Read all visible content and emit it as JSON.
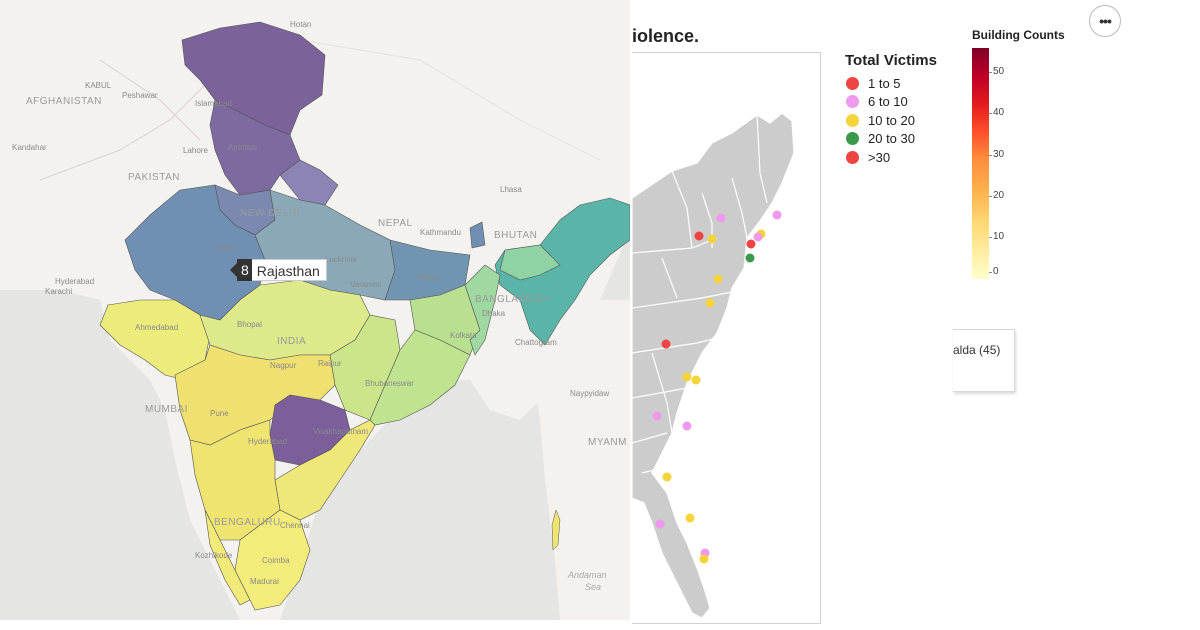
{
  "india_map": {
    "tooltip": {
      "count": "8",
      "state": "Rajasthan"
    },
    "labels": {
      "hotan": "Hotan",
      "kabul": "KABUL",
      "peshawar": "Peshawar",
      "afghanistan": "AFGHANISTAN",
      "islamabad": "Islamabad",
      "kandahar": "Kandahar",
      "lahore": "Lahore",
      "amritsar": "Amritsar",
      "pakistan": "PAKISTAN",
      "lhasa": "Lhasa",
      "new_delhi": "NEW DELHI",
      "nepal": "NEPAL",
      "kathmandu": "Kathmandu",
      "bhutan": "BHUTAN",
      "jaipur": "Jaipur",
      "lucknow": "Lucknow",
      "hyderabad_pk": "Hyderabad",
      "karachi": "Karachi",
      "varanasi": "Varanasi",
      "patna": "Patna",
      "bangladesh": "BANGLADESH",
      "ahmedabad": "Ahmedabad",
      "bhopal": "Bhopal",
      "dhaka": "Dhaka",
      "india": "INDIA",
      "kolkata": "Kolkata",
      "chattogram": "Chattogram",
      "nagpur": "Nagpur",
      "raipur": "Raipur",
      "bhubaneswar": "Bhubaneswar",
      "mumbai": "MUMBAI",
      "pune": "Pune",
      "naypyidaw": "Naypyidaw",
      "hyderabad": "Hyderabad",
      "visakhapatnam": "Visakhapatnam",
      "myanmar": "MYANM",
      "bengaluru": "BENGALURU",
      "chennai": "Chennai",
      "kozhikode": "Kozhikode",
      "coimbatore": "Coimba",
      "madurai": "Madurai",
      "andaman_sea": "Andaman",
      "sea": "Sea"
    }
  },
  "us_map": {
    "title": "iolence."
  },
  "legend": {
    "title": "Total Victims",
    "items": [
      {
        "label": "1 to 5",
        "color": "#ef4444"
      },
      {
        "label": "6 to 10",
        "color": "#ee99ee"
      },
      {
        "label": "10 to 20",
        "color": "#f5d33b"
      },
      {
        "label": "20 to 30",
        "color": "#3a9a4a"
      },
      {
        "label": ">30",
        "color": "#ef4444"
      }
    ]
  },
  "colorbar": {
    "title": "Building Counts",
    "ticks": [
      "50",
      "40",
      "30",
      "20",
      "10",
      "0"
    ]
  },
  "popup": {
    "text": "alda (45)"
  },
  "menu": {
    "label": "•••"
  }
}
